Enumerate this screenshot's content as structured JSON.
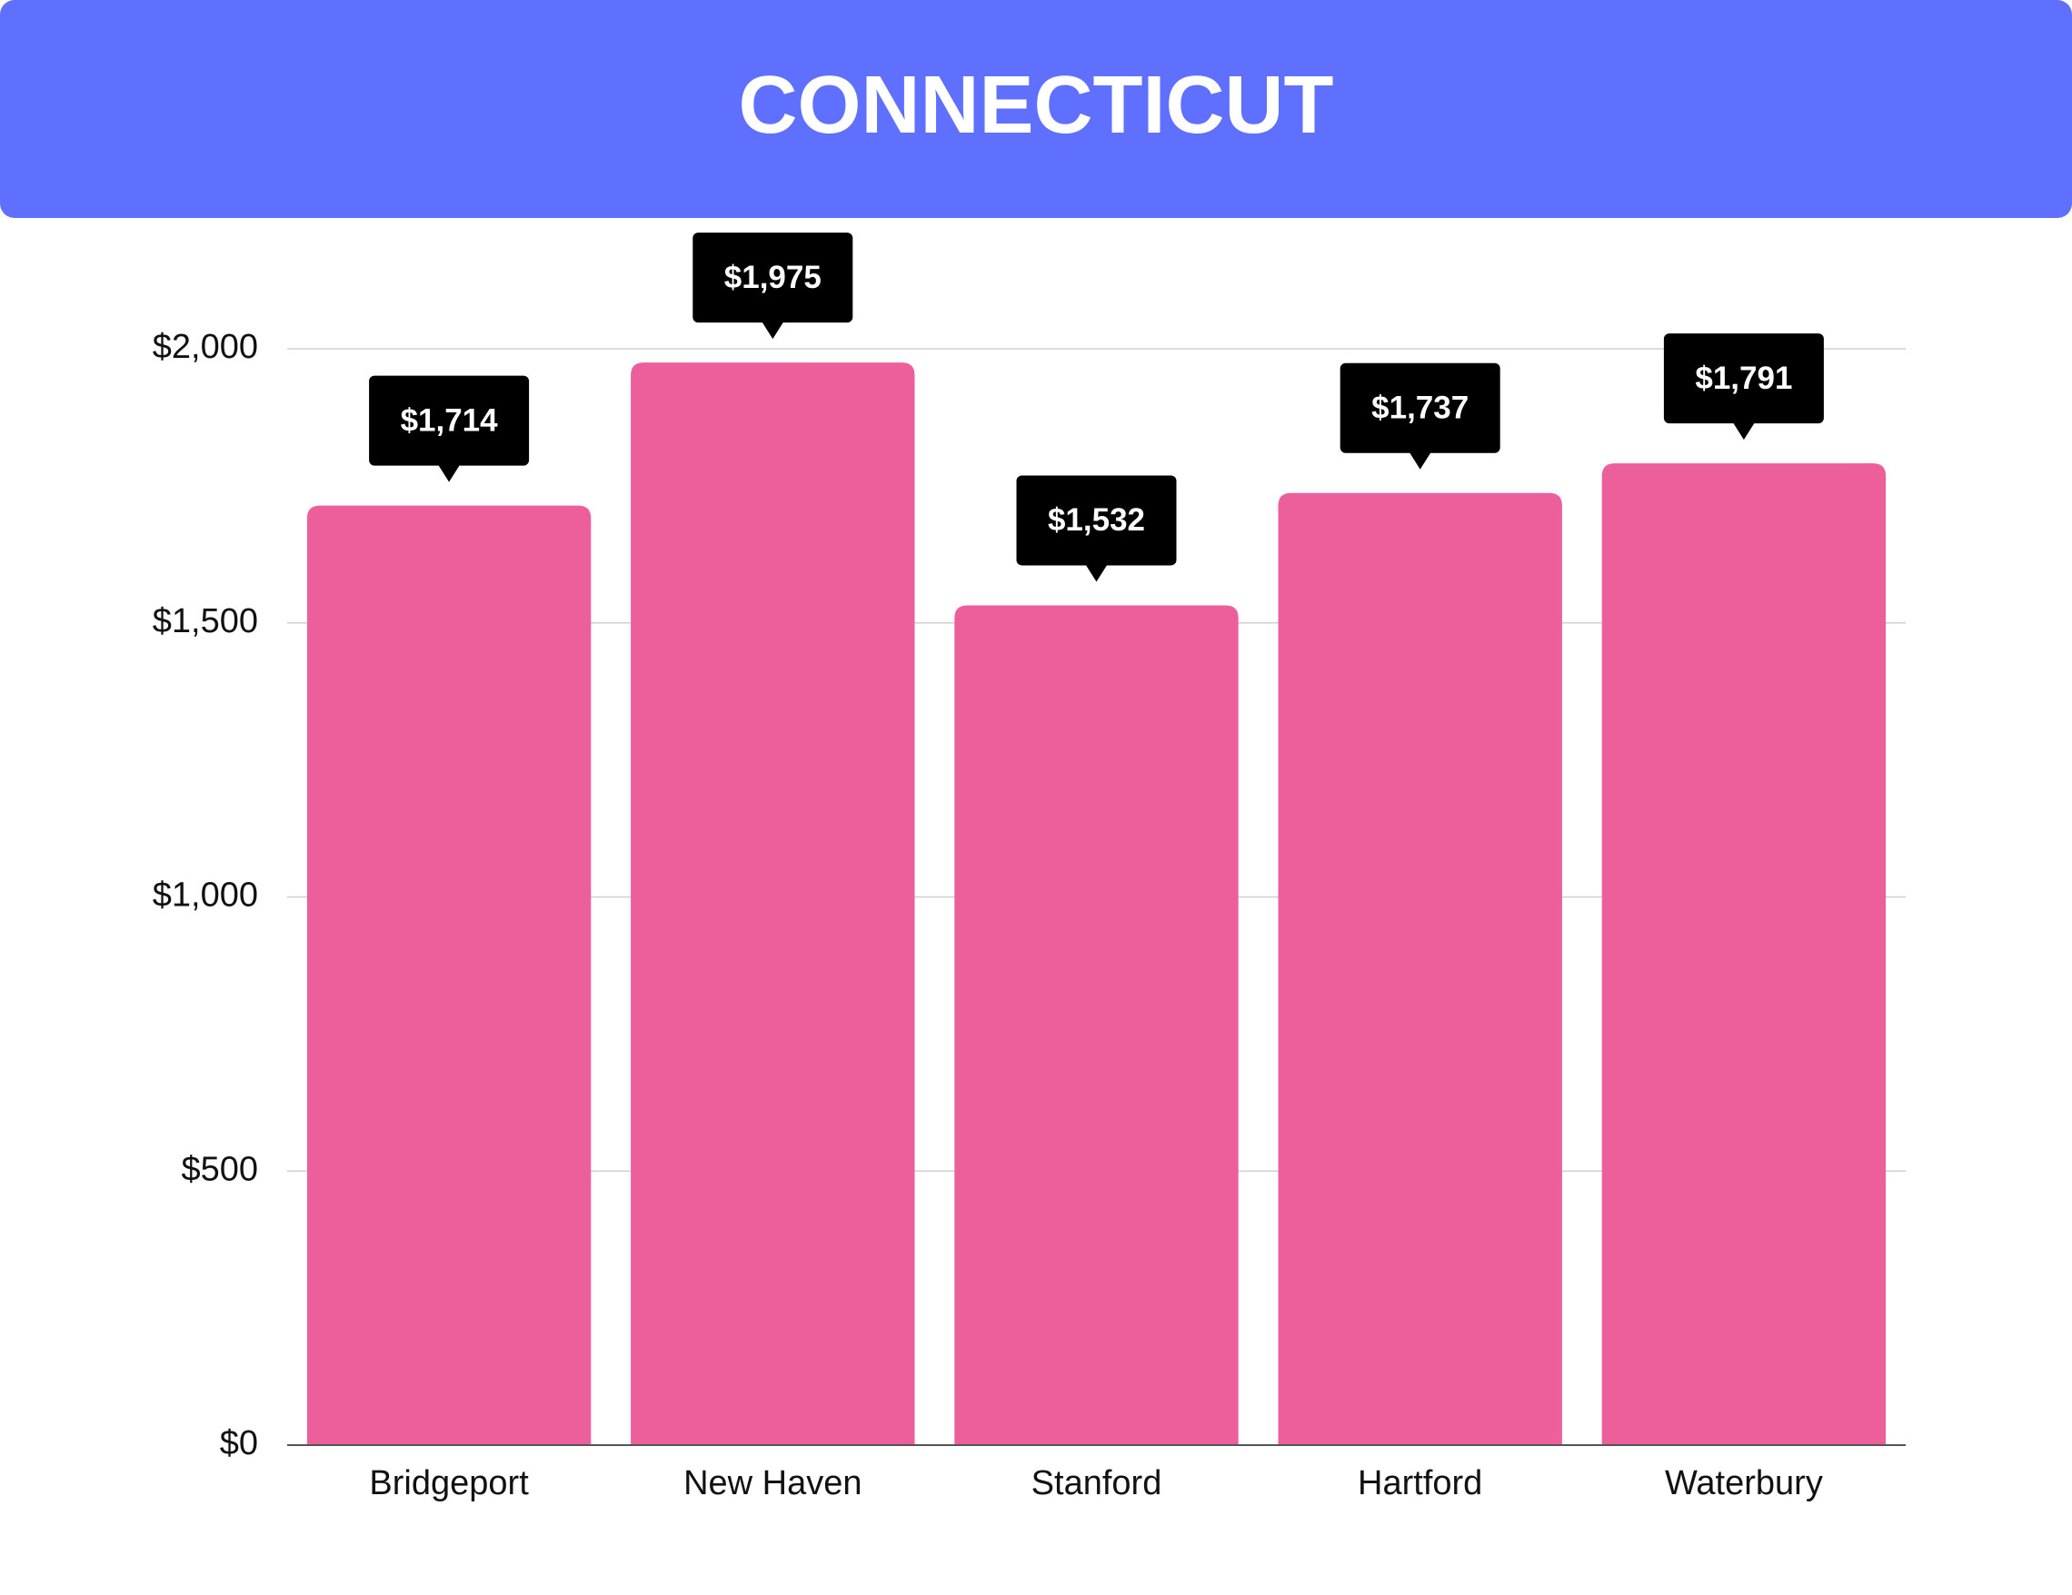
{
  "chart_data": {
    "type": "bar",
    "title": "CONNECTICUT",
    "categories": [
      "Bridgeport",
      "New Haven",
      "Stanford",
      "Hartford",
      "Waterbury"
    ],
    "values": [
      1714,
      1975,
      1532,
      1737,
      1791
    ],
    "value_labels": [
      "$1,714",
      "$1,975",
      "$1,532",
      "$1,737",
      "$1,791"
    ],
    "color": "#ec5f9b",
    "ylim": [
      0,
      2000
    ],
    "yticks": [
      {
        "value": 0,
        "label": "$0"
      },
      {
        "value": 500,
        "label": "$500"
      },
      {
        "value": 1000,
        "label": "$1,000"
      },
      {
        "value": 1500,
        "label": "$1,500"
      },
      {
        "value": 2000,
        "label": "$2,000"
      }
    ],
    "grid": true
  }
}
